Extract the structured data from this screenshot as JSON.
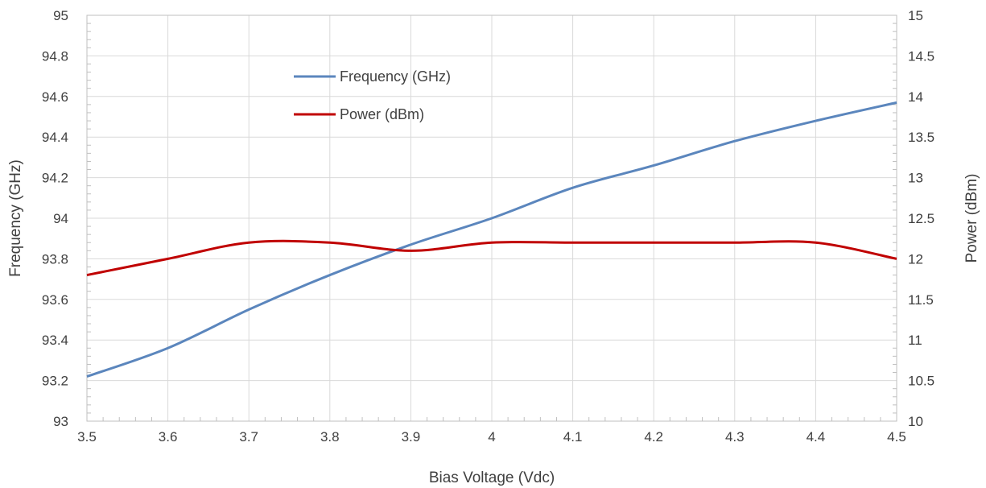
{
  "chart_data": {
    "type": "line",
    "title": "",
    "xlabel": "Bias Voltage (Vdc)",
    "ylabel": "Frequency (GHz)",
    "y2label": "Power (dBm)",
    "xlim": [
      3.5,
      4.5
    ],
    "ylim": [
      93,
      95
    ],
    "y2lim": [
      10,
      15
    ],
    "x_ticks": [
      "3.5",
      "3.6",
      "3.7",
      "3.8",
      "3.9",
      "4",
      "4.1",
      "4.2",
      "4.3",
      "4.4",
      "4.5"
    ],
    "y_ticks": [
      "93",
      "93.2",
      "93.4",
      "93.6",
      "93.8",
      "94",
      "94.2",
      "94.4",
      "94.6",
      "94.8",
      "95"
    ],
    "y2_ticks": [
      "10",
      "10.5",
      "11",
      "11.5",
      "12",
      "12.5",
      "13",
      "13.5",
      "14",
      "14.5",
      "15"
    ],
    "grid": true,
    "legend_position": "top-center",
    "x": [
      3.5,
      3.6,
      3.7,
      3.8,
      3.9,
      4.0,
      4.1,
      4.2,
      4.3,
      4.4,
      4.5
    ],
    "series": [
      {
        "name": "Frequency (GHz)",
        "axis": "left",
        "color": "#5b86bd",
        "values": [
          93.22,
          93.36,
          93.55,
          93.72,
          93.87,
          94.0,
          94.15,
          94.26,
          94.38,
          94.48,
          94.57
        ]
      },
      {
        "name": "Power (dBm)",
        "axis": "right",
        "color": "#c00000",
        "values": [
          11.8,
          12.0,
          12.2,
          12.2,
          12.1,
          12.2,
          12.2,
          12.2,
          12.2,
          12.2,
          12.0
        ]
      }
    ]
  }
}
